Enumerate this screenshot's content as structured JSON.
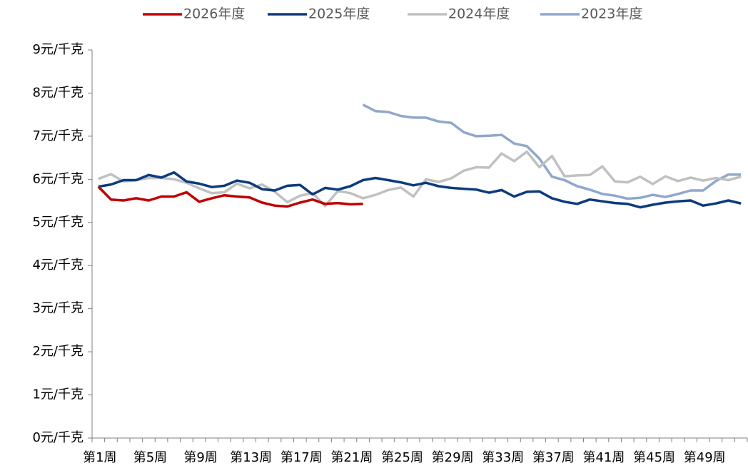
{
  "chart_data": {
    "type": "line",
    "categories": [
      "第1周",
      null,
      null,
      null,
      "第5周",
      null,
      null,
      null,
      "第9周",
      null,
      null,
      null,
      "第13周",
      null,
      null,
      null,
      "第17周",
      null,
      null,
      null,
      "第21周",
      null,
      null,
      null,
      "第25周",
      null,
      null,
      null,
      "第29周",
      null,
      null,
      null,
      "第33周",
      null,
      null,
      null,
      "第37周",
      null,
      null,
      null,
      "第41周",
      null,
      null,
      null,
      "第45周",
      null,
      null,
      null,
      "第49周",
      null,
      null,
      null
    ],
    "series": [
      {
        "name": "2026年度",
        "color": "#c00000",
        "values": [
          5.83,
          5.53,
          5.51,
          5.56,
          5.51,
          5.6,
          5.6,
          5.7,
          5.48,
          5.56,
          5.63,
          5.6,
          5.58,
          5.46,
          5.39,
          5.37,
          5.46,
          5.53,
          5.43,
          5.45,
          5.42,
          5.43,
          null,
          null,
          null,
          null,
          null,
          null,
          null,
          null,
          null,
          null,
          null,
          null,
          null,
          null,
          null,
          null,
          null,
          null,
          null,
          null,
          null,
          null,
          null,
          null,
          null,
          null,
          null,
          null,
          null,
          null
        ]
      },
      {
        "name": "2025年度",
        "color": "#0c3b7d",
        "values": [
          5.83,
          5.88,
          5.98,
          5.98,
          6.1,
          6.04,
          6.16,
          5.95,
          5.9,
          5.82,
          5.85,
          5.97,
          5.92,
          5.77,
          5.74,
          5.85,
          5.87,
          5.65,
          5.8,
          5.76,
          5.84,
          5.98,
          6.03,
          5.98,
          5.93,
          5.86,
          5.92,
          5.84,
          5.8,
          5.78,
          5.76,
          5.69,
          5.75,
          5.6,
          5.71,
          5.72,
          5.56,
          5.48,
          5.43,
          5.53,
          5.49,
          5.45,
          5.43,
          5.35,
          5.41,
          5.46,
          5.49,
          5.51,
          5.39,
          5.44,
          5.51,
          5.44
        ]
      },
      {
        "name": "2024年度",
        "color": "#c0c0c0",
        "values": [
          6.01,
          6.12,
          5.95,
          5.98,
          6.03,
          6.03,
          6.0,
          5.92,
          5.79,
          5.68,
          5.7,
          5.9,
          5.79,
          5.88,
          5.71,
          5.47,
          5.62,
          5.68,
          5.38,
          5.73,
          5.68,
          5.56,
          5.64,
          5.75,
          5.81,
          5.6,
          6.0,
          5.94,
          6.02,
          6.2,
          6.28,
          6.27,
          6.6,
          6.42,
          6.64,
          6.28,
          6.54,
          6.07,
          6.09,
          6.1,
          6.3,
          5.95,
          5.93,
          6.06,
          5.89,
          6.07,
          5.96,
          6.04,
          5.97,
          6.03,
          5.98,
          6.06
        ]
      },
      {
        "name": "2023年度",
        "color": "#8fa8cc",
        "values": [
          null,
          null,
          null,
          null,
          null,
          null,
          null,
          null,
          null,
          null,
          null,
          null,
          null,
          null,
          null,
          null,
          null,
          null,
          null,
          null,
          null,
          7.73,
          7.58,
          7.56,
          7.47,
          7.43,
          7.43,
          7.34,
          7.31,
          7.09,
          7.0,
          7.01,
          7.03,
          6.83,
          6.77,
          6.48,
          6.06,
          5.98,
          5.84,
          5.76,
          5.66,
          5.62,
          5.55,
          5.57,
          5.64,
          5.59,
          5.66,
          5.74,
          5.74,
          5.96,
          6.11,
          6.11
        ]
      }
    ],
    "ylim": [
      0,
      9
    ],
    "yticks": [
      {
        "value": 0,
        "label": "0元/千克"
      },
      {
        "value": 1,
        "label": "1元/千克"
      },
      {
        "value": 2,
        "label": "2元/千克"
      },
      {
        "value": 3,
        "label": "3元/千克"
      },
      {
        "value": 4,
        "label": "4元/千克"
      },
      {
        "value": 5,
        "label": "5元/千克"
      },
      {
        "value": 6,
        "label": "6元/千克"
      },
      {
        "value": 7,
        "label": "7元/千克"
      },
      {
        "value": 8,
        "label": "8元/千克"
      },
      {
        "value": 9,
        "label": "9元/千克"
      }
    ],
    "grid": false,
    "legend": "top"
  }
}
